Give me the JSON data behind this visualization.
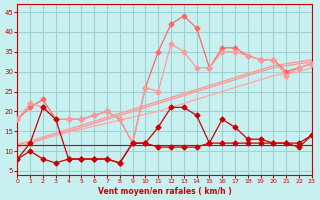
{
  "x": [
    0,
    1,
    2,
    3,
    4,
    5,
    6,
    7,
    8,
    9,
    10,
    11,
    12,
    13,
    14,
    15,
    16,
    17,
    18,
    19,
    20,
    21,
    22,
    23
  ],
  "line_dark1": [
    8,
    12,
    21,
    18,
    8,
    8,
    8,
    8,
    7,
    12,
    12,
    16,
    21,
    21,
    19,
    12,
    18,
    16,
    13,
    13,
    12,
    12,
    11,
    14
  ],
  "line_dark2": [
    8,
    10,
    8,
    7,
    8,
    8,
    8,
    8,
    7,
    12,
    12,
    11,
    11,
    11,
    11,
    12,
    12,
    12,
    12,
    12,
    12,
    12,
    12,
    14
  ],
  "line_pink_upper": [
    18,
    21,
    23,
    18,
    18,
    18,
    19,
    20,
    18,
    12,
    26,
    35,
    42,
    44,
    41,
    31,
    36,
    36,
    34,
    33,
    33,
    30,
    31,
    32
  ],
  "line_pink_lower": [
    18,
    22,
    21,
    18,
    18,
    18,
    19,
    20,
    18,
    12,
    26,
    25,
    37,
    35,
    31,
    31,
    35,
    35,
    34,
    33,
    33,
    29,
    31,
    32
  ],
  "trend1": [
    11.5,
    12.5,
    13.5,
    14.5,
    15.5,
    16.5,
    17.5,
    18.5,
    19.5,
    20.5,
    21.5,
    22.5,
    23.5,
    24.5,
    25.5,
    26.5,
    27.5,
    28.5,
    29.5,
    30.5,
    31.5,
    32.0,
    32.5,
    33.0
  ],
  "trend2": [
    11.0,
    12.0,
    13.0,
    14.0,
    15.0,
    16.0,
    17.0,
    18.0,
    19.0,
    20.0,
    21.0,
    22.0,
    23.0,
    24.0,
    25.0,
    26.0,
    27.0,
    28.0,
    29.0,
    30.0,
    31.0,
    31.5,
    32.0,
    32.5
  ],
  "trend3": [
    11.8,
    12.5,
    13.3,
    14.0,
    14.8,
    15.5,
    16.3,
    17.0,
    17.8,
    18.5,
    19.3,
    20.0,
    21.0,
    22.0,
    23.0,
    24.0,
    25.0,
    26.0,
    27.0,
    28.0,
    29.0,
    29.5,
    30.0,
    31.0
  ],
  "trend_flat": [
    11.5,
    11.5,
    11.5,
    11.5,
    11.5,
    11.5,
    11.5,
    11.5,
    11.5,
    11.5,
    11.5,
    11.5,
    11.5,
    11.5,
    11.5,
    11.5,
    11.5,
    11.5,
    11.5,
    11.5,
    11.5,
    11.5,
    11.5,
    11.5
  ],
  "background_color": "#c8f0f0",
  "grid_color": "#a0d0d0",
  "dark_red": "#cc0000",
  "light_red": "#ff9999",
  "mid_red": "#ff6666",
  "pink_red": "#ffaaaa",
  "xlabel": "Vent moyen/en rafales ( km/h )",
  "ylim": [
    4,
    47
  ],
  "xlim": [
    0,
    23
  ],
  "yticks": [
    5,
    10,
    15,
    20,
    25,
    30,
    35,
    40,
    45
  ],
  "xticks": [
    0,
    1,
    2,
    3,
    4,
    5,
    6,
    7,
    8,
    9,
    10,
    11,
    12,
    13,
    14,
    15,
    16,
    17,
    18,
    19,
    20,
    21,
    22,
    23
  ]
}
